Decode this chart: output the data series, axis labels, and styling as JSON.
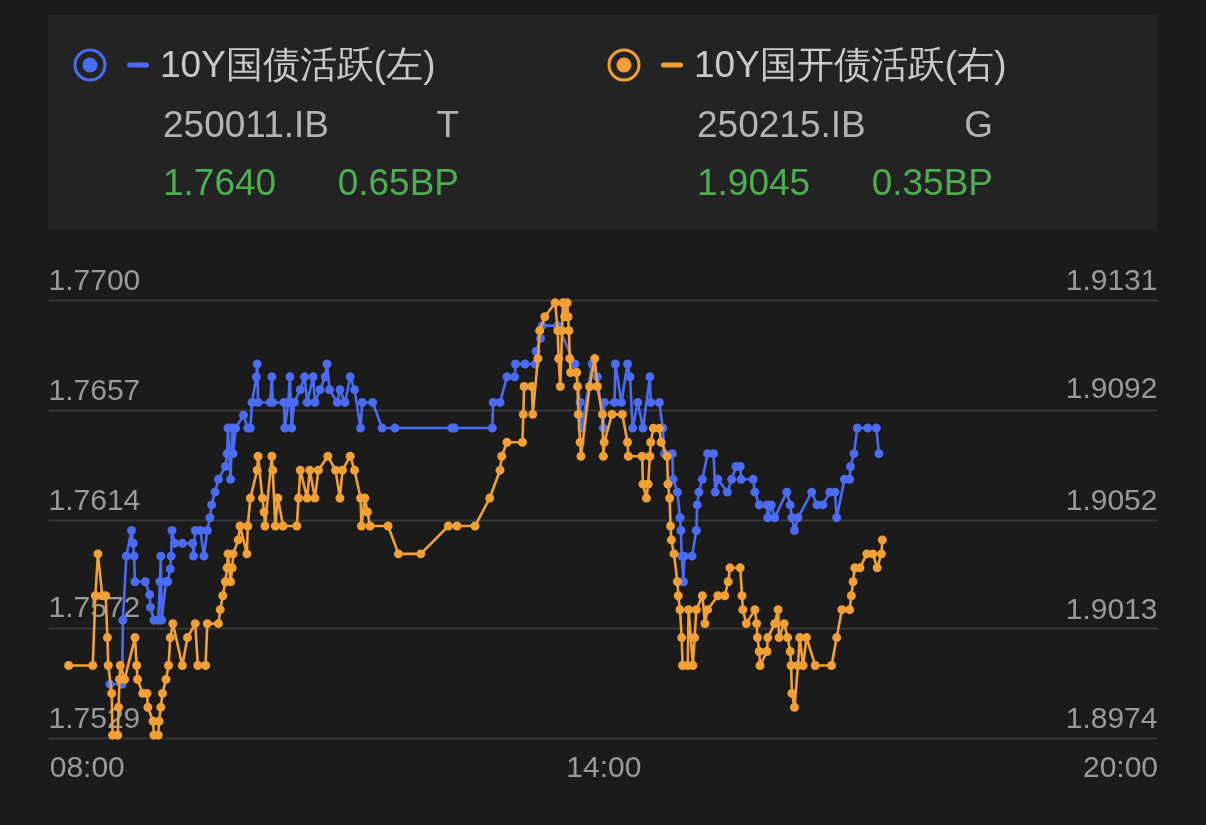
{
  "chart_data": {
    "type": "line",
    "legend": "top",
    "grid": "y",
    "marker": "circle",
    "line_style": "solid",
    "xlim": [
      7.55,
      20.43
    ],
    "xticks": [
      {
        "value": 8,
        "label": "08:00"
      },
      {
        "value": 14,
        "label": "14:00"
      },
      {
        "value": 20,
        "label": "20:00"
      }
    ],
    "ylim": [
      1.7529,
      1.77
    ],
    "yticks": [
      1.7529,
      1.7572,
      1.7614,
      1.7657,
      {
        "value": 1.77,
        "label": "1.7700"
      }
    ],
    "y2lim": [
      1.8974,
      1.9131
    ],
    "y2ticks": [
      1.8974,
      1.9013,
      1.9052,
      1.9092,
      1.9131
    ],
    "annotations": [
      "250011.IB",
      "T",
      "1.7640",
      "0.65BP",
      "250215.IB",
      "G",
      "1.9045",
      "0.35BP"
    ],
    "series": [
      {
        "name": "10Y国债活跃(左)",
        "color": "#4a6cf3",
        "x": [
          8.27,
          8.41,
          8.42,
          8.46,
          8.52,
          8.54,
          8.55,
          8.56,
          8.68,
          8.73,
          8.74,
          8.78,
          8.83,
          8.85,
          8.86,
          8.87,
          8.92,
          8.94,
          8.97,
          8.98,
          8.99,
          9.02,
          9.11,
          9.23,
          9.24,
          9.26,
          9.32,
          9.36,
          9.4,
          9.43,
          9.45,
          9.49,
          9.53,
          9.61,
          9.63,
          9.64,
          9.67,
          9.69,
          9.7,
          9.73,
          9.82,
          9.87,
          9.9,
          9.92,
          9.97,
          9.98,
          9.99,
          10.13,
          10.15,
          10.16,
          10.29,
          10.3,
          10.34,
          10.36,
          10.38,
          10.41,
          10.48,
          10.53,
          10.56,
          10.63,
          10.65,
          10.71,
          10.77,
          10.79,
          10.82,
          10.91,
          10.94,
          11.0,
          11.06,
          11.11,
          11.18,
          11.2,
          11.32,
          11.43,
          11.58,
          12.24,
          12.27,
          12.71,
          12.72,
          12.8,
          12.88,
          12.97,
          12.98,
          13.09,
          13.21,
          13.22,
          13.27,
          13.29,
          13.47,
          13.67,
          13.73,
          13.75,
          13.87,
          13.93,
          14.0,
          14.01,
          14.13,
          14.14,
          14.21,
          14.28,
          14.31,
          14.34,
          14.4,
          14.46,
          14.54,
          14.55,
          14.65,
          14.69,
          14.71,
          14.8,
          14.81,
          14.86,
          14.89,
          14.9,
          14.91,
          14.93,
          14.94,
          15.03,
          15.08,
          15.09,
          15.11,
          15.15,
          15.21,
          15.28,
          15.3,
          15.33,
          15.44,
          15.49,
          15.54,
          15.59,
          15.6,
          15.74,
          15.76,
          15.81,
          15.9,
          15.91,
          15.95,
          15.99,
          16.13,
          16.17,
          16.19,
          16.22,
          16.26,
          16.42,
          16.48,
          16.55,
          16.63,
          16.69,
          16.71,
          16.8,
          16.86,
          16.87,
          16.91,
          16.95,
          17.07,
          17.17,
          17.2
        ],
        "values": [
          1.755,
          1.755,
          1.7575,
          1.76,
          1.761,
          1.7605,
          1.76,
          1.759,
          1.759,
          1.7585,
          1.758,
          1.7575,
          1.7575,
          1.759,
          1.76,
          1.7575,
          1.759,
          1.759,
          1.7595,
          1.76,
          1.761,
          1.7605,
          1.7605,
          1.7605,
          1.76,
          1.761,
          1.761,
          1.76,
          1.761,
          1.7615,
          1.762,
          1.7625,
          1.763,
          1.7635,
          1.764,
          1.765,
          1.763,
          1.765,
          1.764,
          1.765,
          1.7655,
          1.765,
          1.765,
          1.766,
          1.767,
          1.7675,
          1.766,
          1.766,
          1.767,
          1.766,
          1.766,
          1.765,
          1.766,
          1.767,
          1.765,
          1.766,
          1.7665,
          1.767,
          1.766,
          1.767,
          1.766,
          1.7665,
          1.767,
          1.7675,
          1.7665,
          1.766,
          1.7665,
          1.766,
          1.767,
          1.7665,
          1.765,
          1.766,
          1.766,
          1.765,
          1.765,
          1.765,
          1.765,
          1.765,
          1.766,
          1.766,
          1.767,
          1.767,
          1.7675,
          1.7675,
          1.7675,
          1.768,
          1.7685,
          1.769,
          1.769,
          1.7675,
          1.766,
          1.765,
          1.7675,
          1.767,
          1.765,
          1.766,
          1.766,
          1.7675,
          1.766,
          1.7675,
          1.767,
          1.765,
          1.766,
          1.765,
          1.767,
          1.766,
          1.766,
          1.765,
          1.764,
          1.764,
          1.763,
          1.7625,
          1.7615,
          1.761,
          1.76,
          1.759,
          1.76,
          1.76,
          1.761,
          1.762,
          1.7625,
          1.763,
          1.764,
          1.764,
          1.7625,
          1.763,
          1.7625,
          1.763,
          1.7635,
          1.7635,
          1.763,
          1.763,
          1.7625,
          1.762,
          1.762,
          1.7615,
          1.762,
          1.7615,
          1.7625,
          1.762,
          1.7615,
          1.761,
          1.7615,
          1.7625,
          1.762,
          1.762,
          1.7625,
          1.7625,
          1.7615,
          1.763,
          1.763,
          1.7635,
          1.764,
          1.765,
          1.765,
          1.765,
          1.764
        ]
      },
      {
        "name": "10Y国开债活跃(右)",
        "color": "#f2a033",
        "axis": "y2",
        "x": [
          7.79,
          8.07,
          8.1,
          8.13,
          8.18,
          8.22,
          8.24,
          8.25,
          8.29,
          8.3,
          8.36,
          8.37,
          8.38,
          8.39,
          8.44,
          8.56,
          8.58,
          8.59,
          8.65,
          8.7,
          8.71,
          8.77,
          8.78,
          8.83,
          8.84,
          8.86,
          8.88,
          8.92,
          8.95,
          8.97,
          9.0,
          9.11,
          9.17,
          9.26,
          9.29,
          9.38,
          9.4,
          9.53,
          9.55,
          9.58,
          9.61,
          9.63,
          9.64,
          9.67,
          9.69,
          9.7,
          9.76,
          9.78,
          9.86,
          9.87,
          9.9,
          9.98,
          9.99,
          10.04,
          10.06,
          10.07,
          10.15,
          10.16,
          10.19,
          10.22,
          10.28,
          10.44,
          10.46,
          10.48,
          10.56,
          10.59,
          10.65,
          10.69,
          10.8,
          10.89,
          10.94,
          10.97,
          11.06,
          11.11,
          11.18,
          11.19,
          11.23,
          11.26,
          11.29,
          11.5,
          11.62,
          11.88,
          12.2,
          12.3,
          12.51,
          12.68,
          12.8,
          12.82,
          12.88,
          13.06,
          13.07,
          13.08,
          13.17,
          13.18,
          13.24,
          13.26,
          13.32,
          13.44,
          13.47,
          13.48,
          13.5,
          13.52,
          13.53,
          13.55,
          13.58,
          13.59,
          13.6,
          13.61,
          13.62,
          13.69,
          13.7,
          13.71,
          13.73,
          13.74,
          13.84,
          13.9,
          13.93,
          13.99,
          14.0,
          14.01,
          14.1,
          14.22,
          14.28,
          14.29,
          14.45,
          14.46,
          14.5,
          14.52,
          14.54,
          14.55,
          14.58,
          14.65,
          14.67,
          14.74,
          14.75,
          14.77,
          14.78,
          14.79,
          14.82,
          14.86,
          14.87,
          14.89,
          14.91,
          14.92,
          14.98,
          14.99,
          15.04,
          15.06,
          15.08,
          15.15,
          15.18,
          15.21,
          15.33,
          15.41,
          15.45,
          15.47,
          15.59,
          15.61,
          15.62,
          15.66,
          15.76,
          15.78,
          15.79,
          15.81,
          15.82,
          15.9,
          15.91,
          15.99,
          16.03,
          16.04,
          16.1,
          16.14,
          16.17,
          16.18,
          16.19,
          16.22,
          16.26,
          16.28,
          16.32,
          16.36,
          16.46,
          16.65,
          16.71,
          16.77,
          16.86,
          16.88,
          16.9,
          16.92,
          16.98,
          17.06,
          17.13,
          17.18,
          17.23,
          17.24
        ],
        "values": [
          1.9,
          1.9,
          1.9025,
          1.904,
          1.9025,
          1.9025,
          1.901,
          1.9,
          1.899,
          1.8975,
          1.8975,
          1.8985,
          1.8995,
          1.9,
          1.8995,
          1.901,
          1.9,
          1.8995,
          1.899,
          1.899,
          1.8985,
          1.898,
          1.8975,
          1.8975,
          1.898,
          1.8985,
          1.899,
          1.8995,
          1.9,
          1.901,
          1.9015,
          1.9,
          1.901,
          1.9015,
          1.9,
          1.9,
          1.9015,
          1.9015,
          1.902,
          1.9025,
          1.903,
          1.9035,
          1.904,
          1.903,
          1.9035,
          1.904,
          1.9045,
          1.905,
          1.904,
          1.905,
          1.906,
          1.907,
          1.9075,
          1.906,
          1.9055,
          1.905,
          1.9075,
          1.907,
          1.905,
          1.906,
          1.905,
          1.905,
          1.906,
          1.907,
          1.906,
          1.907,
          1.906,
          1.907,
          1.9075,
          1.907,
          1.906,
          1.907,
          1.9075,
          1.907,
          1.906,
          1.905,
          1.906,
          1.9055,
          1.905,
          1.905,
          1.904,
          1.904,
          1.905,
          1.905,
          1.905,
          1.906,
          1.907,
          1.9075,
          1.908,
          1.908,
          1.909,
          1.91,
          1.91,
          1.909,
          1.911,
          1.912,
          1.9125,
          1.913,
          1.912,
          1.911,
          1.91,
          1.912,
          1.913,
          1.9125,
          1.913,
          1.9125,
          1.912,
          1.911,
          1.9105,
          1.9105,
          1.91,
          1.909,
          1.908,
          1.9075,
          1.91,
          1.911,
          1.91,
          1.909,
          1.9075,
          1.908,
          1.909,
          1.909,
          1.908,
          1.9075,
          1.9075,
          1.9065,
          1.906,
          1.9065,
          1.9075,
          1.908,
          1.9085,
          1.9085,
          1.908,
          1.9075,
          1.9065,
          1.906,
          1.905,
          1.9045,
          1.904,
          1.903,
          1.9025,
          1.902,
          1.901,
          1.9,
          1.9,
          1.902,
          1.9,
          1.901,
          1.902,
          1.9025,
          1.9015,
          1.902,
          1.9025,
          1.9025,
          1.903,
          1.9035,
          1.9035,
          1.9025,
          1.902,
          1.9015,
          1.902,
          1.9015,
          1.901,
          1.9005,
          1.9,
          1.9005,
          1.901,
          1.9015,
          1.902,
          1.901,
          1.9015,
          1.901,
          1.9005,
          1.9,
          1.899,
          1.8985,
          1.9,
          1.901,
          1.9,
          1.901,
          1.9,
          1.9,
          1.901,
          1.902,
          1.902,
          1.9025,
          1.903,
          1.9035,
          1.9035,
          1.904,
          1.904,
          1.9035,
          1.904,
          1.9045
        ]
      }
    ]
  }
}
